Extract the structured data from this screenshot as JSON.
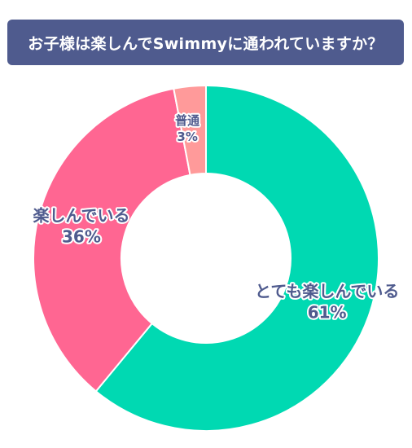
{
  "chart_data": {
    "type": "pie",
    "donut": true,
    "title": "お子様は楽しんでSwimmyに通われていますか？",
    "categories": [
      "とても楽しんでいる",
      "楽しんでいる",
      "普通"
    ],
    "values": [
      61,
      36,
      3
    ],
    "value_labels": [
      "61%",
      "36%",
      "3%"
    ],
    "colors": [
      "#00d9b2",
      "#ff6692",
      "#ff9a9a"
    ],
    "legend": "none"
  }
}
